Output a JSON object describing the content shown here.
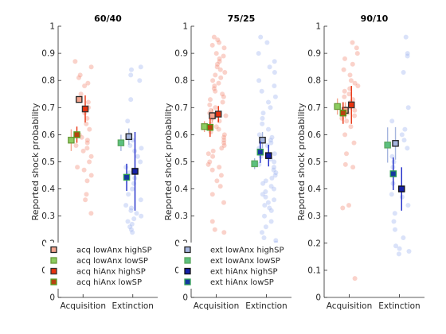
{
  "chart_data": [
    {
      "type": "scatter",
      "title": "60/40",
      "ylabel": "Reported shock probability",
      "categories": [
        "Acquisition",
        "Extinction"
      ],
      "ylim": [
        0,
        1
      ],
      "yticks": [
        "0",
        "0.1",
        "0.2",
        "0.3",
        "0.4",
        "0.5",
        "0.6",
        "0.7",
        "0.8",
        "0.9",
        "1"
      ],
      "series": [
        {
          "name": "acq lowAnx highSP",
          "phase": 0,
          "offset": -0.09,
          "mean": 0.73,
          "err": 0.0,
          "face": "#f4a58f",
          "edge": "#222222",
          "bar": "#f3a890"
        },
        {
          "name": "acq lowAnx lowSP",
          "phase": 0,
          "offset": -0.27,
          "mean": 0.58,
          "err": 0.04,
          "face": "#8ccc5f",
          "edge": "#6a9a3a",
          "bar": "#f3a890"
        },
        {
          "name": "acq hiAnx highSP",
          "phase": 0,
          "offset": 0.05,
          "mean": 0.695,
          "err": 0.05,
          "face": "#e8320f",
          "edge": "#333333",
          "bar": "#e8320f"
        },
        {
          "name": "acq hiAnx lowSP",
          "phase": 0,
          "offset": -0.14,
          "mean": 0.6,
          "err": 0.03,
          "face": "#b8430f",
          "edge": "#52a020",
          "bar": "#e8320f"
        },
        {
          "name": "ext lowAnx highSP",
          "phase": 1,
          "offset": -0.09,
          "mean": 0.593,
          "err": 0.03,
          "face": "#a5b5de",
          "edge": "#222222",
          "bar": "#a5b5de"
        },
        {
          "name": "ext lowAnx lowSP",
          "phase": 1,
          "offset": -0.27,
          "mean": 0.57,
          "err": 0.03,
          "face": "#5cc080",
          "edge": "#5aa85e",
          "bar": "#a5b5de"
        },
        {
          "name": "ext hiAnx highSP",
          "phase": 1,
          "offset": 0.05,
          "mean": 0.465,
          "err": 0.145,
          "face": "#1520a8",
          "edge": "#111111",
          "bar": "#1a28c8"
        },
        {
          "name": "ext hiAnx lowSP",
          "phase": 1,
          "offset": -0.14,
          "mean": 0.443,
          "err": 0.05,
          "face": "#1438a0",
          "edge": "#30a050",
          "bar": "#1a28c8"
        }
      ],
      "raw_points": [
        {
          "phase": 0,
          "values": [
            0.87,
            0.85,
            0.82,
            0.81,
            0.79,
            0.78,
            0.75,
            0.72,
            0.7,
            0.68,
            0.66,
            0.64,
            0.62,
            0.6,
            0.59,
            0.58,
            0.57,
            0.56,
            0.55,
            0.54,
            0.52,
            0.5,
            0.48,
            0.47,
            0.45,
            0.43,
            0.38,
            0.36,
            0.31
          ]
        },
        {
          "phase": 1,
          "values": [
            0.85,
            0.84,
            0.82,
            0.8,
            0.73,
            0.65,
            0.6,
            0.58,
            0.56,
            0.55,
            0.54,
            0.52,
            0.5,
            0.48,
            0.46,
            0.44,
            0.42,
            0.4,
            0.38,
            0.36,
            0.34,
            0.33,
            0.32,
            0.31,
            0.3,
            0.29,
            0.28,
            0.27,
            0.26,
            0.25,
            0.24
          ]
        }
      ]
    },
    {
      "type": "scatter",
      "title": "75/25",
      "ylabel": "Reported shock probability",
      "categories": [
        "Acquisition",
        "Extinction"
      ],
      "ylim": [
        0,
        1
      ],
      "yticks": [
        "0",
        "0.1",
        "0.2",
        "0.3",
        "0.4",
        "0.5",
        "0.6",
        "0.7",
        "0.8",
        "0.9",
        "1"
      ],
      "series": [
        {
          "name": "acq lowAnx highSP",
          "phase": 0,
          "offset": -0.09,
          "mean": 0.67,
          "err": 0.025,
          "face": "#f4a58f",
          "edge": "#222222",
          "bar": "#f3a890"
        },
        {
          "name": "acq lowAnx lowSP",
          "phase": 0,
          "offset": -0.27,
          "mean": 0.63,
          "err": 0.02,
          "face": "#8ccc5f",
          "edge": "#6a9a3a",
          "bar": "#f3a890"
        },
        {
          "name": "acq hiAnx highSP",
          "phase": 0,
          "offset": 0.05,
          "mean": 0.676,
          "err": 0.03,
          "face": "#e8320f",
          "edge": "#333333",
          "bar": "#e8320f"
        },
        {
          "name": "acq hiAnx lowSP",
          "phase": 0,
          "offset": -0.14,
          "mean": 0.627,
          "err": 0.035,
          "face": "#b8430f",
          "edge": "#52a020",
          "bar": "#e8320f"
        },
        {
          "name": "ext lowAnx highSP",
          "phase": 1,
          "offset": -0.09,
          "mean": 0.58,
          "err": 0.03,
          "face": "#a5b5de",
          "edge": "#222222",
          "bar": "#a5b5de"
        },
        {
          "name": "ext lowAnx lowSP",
          "phase": 1,
          "offset": -0.27,
          "mean": 0.493,
          "err": 0.02,
          "face": "#5cc080",
          "edge": "#5aa85e",
          "bar": "#a5b5de"
        },
        {
          "name": "ext hiAnx highSP",
          "phase": 1,
          "offset": 0.05,
          "mean": 0.523,
          "err": 0.04,
          "face": "#1520a8",
          "edge": "#111111",
          "bar": "#1a28c8"
        },
        {
          "name": "ext hiAnx lowSP",
          "phase": 1,
          "offset": -0.14,
          "mean": 0.536,
          "err": 0.04,
          "face": "#1438a0",
          "edge": "#30a050",
          "bar": "#1a28c8"
        }
      ],
      "raw_points": [
        {
          "phase": 0,
          "values": [
            0.96,
            0.95,
            0.94,
            0.93,
            0.92,
            0.9,
            0.89,
            0.88,
            0.87,
            0.86,
            0.85,
            0.84,
            0.83,
            0.82,
            0.81,
            0.8,
            0.79,
            0.78,
            0.77,
            0.76,
            0.75,
            0.74,
            0.73,
            0.72,
            0.71,
            0.7,
            0.69,
            0.68,
            0.67,
            0.66,
            0.65,
            0.64,
            0.63,
            0.62,
            0.61,
            0.6,
            0.59,
            0.58,
            0.57,
            0.56,
            0.55,
            0.54,
            0.53,
            0.52,
            0.5,
            0.49,
            0.48,
            0.47,
            0.45,
            0.43,
            0.41,
            0.38,
            0.35,
            0.28,
            0.25,
            0.24
          ]
        },
        {
          "phase": 1,
          "values": [
            0.96,
            0.94,
            0.9,
            0.87,
            0.85,
            0.83,
            0.8,
            0.78,
            0.76,
            0.74,
            0.72,
            0.7,
            0.68,
            0.66,
            0.64,
            0.62,
            0.6,
            0.59,
            0.58,
            0.57,
            0.56,
            0.55,
            0.54,
            0.53,
            0.52,
            0.51,
            0.5,
            0.49,
            0.48,
            0.47,
            0.46,
            0.45,
            0.44,
            0.43,
            0.42,
            0.41,
            0.4,
            0.39,
            0.38,
            0.37,
            0.36,
            0.35,
            0.34,
            0.33,
            0.32,
            0.3,
            0.28,
            0.26,
            0.24,
            0.22,
            0.21,
            0.2
          ]
        }
      ]
    },
    {
      "type": "scatter",
      "title": "90/10",
      "ylabel": "Reported shock probability",
      "categories": [
        "Acquisition",
        "Extinction"
      ],
      "ylim": [
        0,
        1
      ],
      "yticks": [
        "0",
        "0.1",
        "0.2",
        "0.3",
        "0.4",
        "0.5",
        "0.6",
        "0.7",
        "0.8",
        "0.9",
        "1"
      ],
      "series": [
        {
          "name": "acq lowAnx highSP",
          "phase": 0,
          "offset": -0.09,
          "mean": 0.69,
          "err": 0.03,
          "face": "#f4a58f",
          "edge": "#222222",
          "bar": "#f3a890"
        },
        {
          "name": "acq lowAnx lowSP",
          "phase": 0,
          "offset": -0.27,
          "mean": 0.704,
          "err": 0.03,
          "face": "#8ccc5f",
          "edge": "#6a9a3a",
          "bar": "#f3a890"
        },
        {
          "name": "acq hiAnx highSP",
          "phase": 0,
          "offset": 0.05,
          "mean": 0.71,
          "err": 0.07,
          "face": "#e8320f",
          "edge": "#333333",
          "bar": "#e8320f"
        },
        {
          "name": "acq hiAnx lowSP",
          "phase": 0,
          "offset": -0.14,
          "mean": 0.68,
          "err": 0.04,
          "face": "#b8430f",
          "edge": "#52a020",
          "bar": "#e8320f"
        },
        {
          "name": "ext lowAnx highSP",
          "phase": 1,
          "offset": -0.09,
          "mean": 0.568,
          "err": 0.06,
          "face": "#a5b5de",
          "edge": "#222222",
          "bar": "#a5b5de"
        },
        {
          "name": "ext lowAnx lowSP",
          "phase": 1,
          "offset": -0.27,
          "mean": 0.562,
          "err": 0.065,
          "face": "#5cc080",
          "edge": "#5aa85e",
          "bar": "#a5b5de"
        },
        {
          "name": "ext hiAnx highSP",
          "phase": 1,
          "offset": 0.05,
          "mean": 0.4,
          "err": 0.08,
          "face": "#1520a8",
          "edge": "#111111",
          "bar": "#1a28c8"
        },
        {
          "name": "ext hiAnx lowSP",
          "phase": 1,
          "offset": -0.14,
          "mean": 0.456,
          "err": 0.06,
          "face": "#1438a0",
          "edge": "#30a050",
          "bar": "#1a28c8"
        }
      ],
      "raw_points": [
        {
          "phase": 0,
          "values": [
            0.94,
            0.92,
            0.9,
            0.88,
            0.86,
            0.84,
            0.82,
            0.8,
            0.79,
            0.78,
            0.77,
            0.76,
            0.75,
            0.74,
            0.73,
            0.72,
            0.71,
            0.7,
            0.69,
            0.68,
            0.67,
            0.66,
            0.65,
            0.63,
            0.6,
            0.57,
            0.53,
            0.49,
            0.48,
            0.34,
            0.33,
            0.07
          ]
        },
        {
          "phase": 1,
          "values": [
            0.96,
            0.9,
            0.89,
            0.83,
            0.7,
            0.65,
            0.62,
            0.6,
            0.58,
            0.55,
            0.52,
            0.5,
            0.48,
            0.45,
            0.42,
            0.38,
            0.37,
            0.34,
            0.31,
            0.28,
            0.25,
            0.22,
            0.19,
            0.18,
            0.17,
            0.16
          ]
        }
      ]
    }
  ],
  "legends": [
    [
      "acq lowAnx highSP",
      "acq lowAnx lowSP",
      "acq hiAnx highSP",
      "acq hiAnx lowSP"
    ],
    [
      "ext lowAnx highSP",
      "ext lowAnx lowSP",
      "ext hiAnx highSP",
      "ext hiAnx lowSP"
    ]
  ]
}
